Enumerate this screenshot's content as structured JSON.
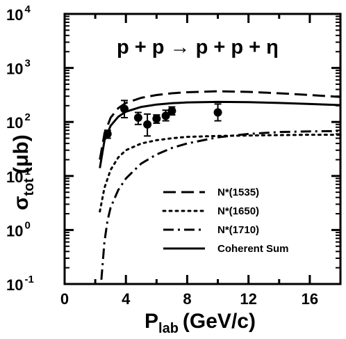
{
  "chart_data": {
    "type": "line",
    "reaction": "p + p → p + p + η",
    "xlabel": {
      "main": "P",
      "sub": "lab",
      "unit": "(GeV/c)"
    },
    "ylabel": {
      "main": "σ",
      "sub": "tot",
      "unit": "(μb)"
    },
    "xlim": [
      0,
      18
    ],
    "ylim": [
      0.1,
      10000
    ],
    "yscale": "log",
    "x_ticks": [
      0,
      4,
      8,
      12,
      16
    ],
    "y_ticks": [
      {
        "value": 0.1,
        "base": "10",
        "exp": "-1"
      },
      {
        "value": 1,
        "base": "10",
        "exp": "0"
      },
      {
        "value": 10,
        "base": "10",
        "exp": "1"
      },
      {
        "value": 100,
        "base": "10",
        "exp": "2"
      },
      {
        "value": 1000,
        "base": "10",
        "exp": "3"
      },
      {
        "value": 10000,
        "base": "10",
        "exp": "4"
      }
    ],
    "grid": false,
    "legend_position": "bottom-right",
    "series": [
      {
        "name": "N*(1535)",
        "style": "dashed",
        "x": [
          2.3,
          2.6,
          3.0,
          3.5,
          4.0,
          5.0,
          6.0,
          7.0,
          8.0,
          10.0,
          12.0,
          14.0,
          16.0,
          18.0
        ],
        "y": [
          20,
          60,
          120,
          180,
          225,
          280,
          315,
          340,
          355,
          370,
          360,
          340,
          315,
          290
        ]
      },
      {
        "name": "N*(1650)",
        "style": "dotted",
        "x": [
          2.3,
          2.6,
          3.0,
          3.5,
          4.0,
          5.0,
          6.0,
          7.0,
          8.0,
          10.0,
          12.0,
          14.0,
          16.0,
          18.0
        ],
        "y": [
          2.2,
          6,
          13,
          22,
          30,
          40,
          46,
          50,
          53,
          55,
          56,
          57,
          58,
          58
        ]
      },
      {
        "name": "N*(1710)",
        "style": "dash-dot",
        "x": [
          2.4,
          2.6,
          2.8,
          3.0,
          3.5,
          4.0,
          5.0,
          6.0,
          7.0,
          8.0,
          10.0,
          12.0,
          14.0,
          16.0,
          18.0
        ],
        "y": [
          0.12,
          0.6,
          1.5,
          2.6,
          5.5,
          9,
          17,
          25,
          33,
          40,
          52,
          60,
          65,
          67,
          68
        ]
      },
      {
        "name": "Coherent Sum",
        "style": "solid",
        "x": [
          2.3,
          2.6,
          3.0,
          3.5,
          4.0,
          5.0,
          6.0,
          7.0,
          8.0,
          10.0,
          12.0,
          14.0,
          16.0,
          18.0
        ],
        "y": [
          14,
          45,
          85,
          125,
          155,
          190,
          210,
          222,
          230,
          235,
          232,
          225,
          215,
          205
        ]
      }
    ],
    "data_points": {
      "x": [
        2.8,
        3.9,
        4.8,
        5.4,
        6.0,
        6.6,
        7.0,
        10.0
      ],
      "y": [
        60,
        175,
        120,
        90,
        115,
        130,
        160,
        150
      ],
      "err_low": [
        50,
        120,
        90,
        55,
        95,
        105,
        135,
        105
      ],
      "err_high": [
        70,
        250,
        150,
        140,
        135,
        165,
        190,
        215
      ]
    }
  }
}
